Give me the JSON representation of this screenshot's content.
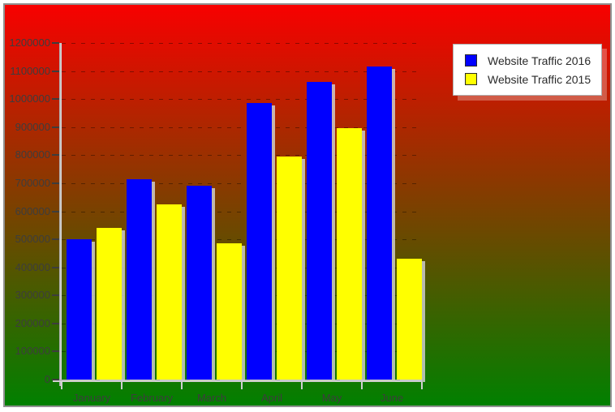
{
  "chart_data": {
    "type": "bar",
    "title": "",
    "categories": [
      "January",
      "February",
      "March",
      "April",
      "May",
      "June"
    ],
    "series": [
      {
        "name": "Website Traffic 2016",
        "color": "#0000ff",
        "values": [
          500000,
          715000,
          690000,
          985000,
          1060000,
          1115000
        ]
      },
      {
        "name": "Website Traffic 2015",
        "color": "#ffff00",
        "values": [
          540000,
          625000,
          485000,
          795000,
          895000,
          430000
        ]
      }
    ],
    "xlabel": "",
    "ylabel": "",
    "ylim": [
      0,
      1200000
    ],
    "ytick_step": 100000,
    "ytick_labels": [
      "0",
      "100000",
      "200000",
      "300000",
      "400000",
      "500000",
      "600000",
      "700000",
      "800000",
      "900000",
      "1000000",
      "1100000",
      "1200000"
    ],
    "grid": "horizontal-dashed",
    "legend_position": "top-right",
    "colors": {
      "background_top": "#f80000",
      "background_bottom": "#018000",
      "axis_line": "#c8c8c8",
      "axis_text": "#3d3d3d",
      "gridline": "rgba(0,0,0,0.38)",
      "legend_background": "#ffffff"
    }
  }
}
